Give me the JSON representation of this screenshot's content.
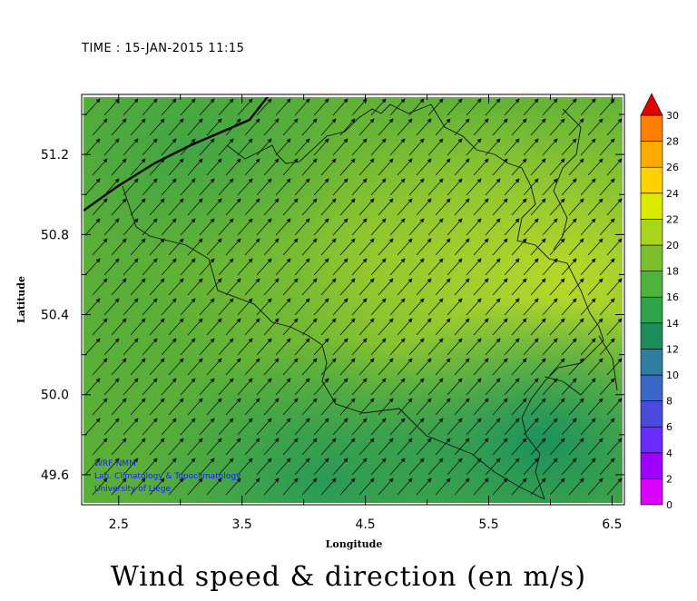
{
  "header": {
    "time": "TIME : 15-JAN-2015 11:15"
  },
  "footer": {
    "title": "Wind speed & direction (en m/s)"
  },
  "map": {
    "xlabel": "Longitude",
    "ylabel": "Latitude",
    "xlim": [
      2.2,
      6.6
    ],
    "ylim": [
      49.45,
      51.5
    ],
    "xticks": [
      "2.5",
      "3.5",
      "4.5",
      "5.5",
      "6.5"
    ],
    "yticks": [
      "49.6",
      "50.0",
      "50.4",
      "50.8",
      "51.2"
    ],
    "credits": [
      "WRF-NMM",
      "Lab. Climatology & Topoclimatology",
      "University of Liege"
    ]
  },
  "colorbar": {
    "min": 0,
    "max": 30,
    "labels": [
      "0",
      "2",
      "4",
      "6",
      "8",
      "10",
      "12",
      "14",
      "16",
      "18",
      "20",
      "22",
      "24",
      "26",
      "28",
      "30"
    ],
    "colors": [
      "#d900ff",
      "#a000ff",
      "#6a2bff",
      "#4a4adf",
      "#3a66c8",
      "#2e7f9f",
      "#1c8e5c",
      "#2ea44a",
      "#4fb23a",
      "#79c02c",
      "#a8d51a",
      "#dcea00",
      "#ffd200",
      "#ffaa00",
      "#ff7f00",
      "#ff3c00",
      "#e00000"
    ]
  }
}
